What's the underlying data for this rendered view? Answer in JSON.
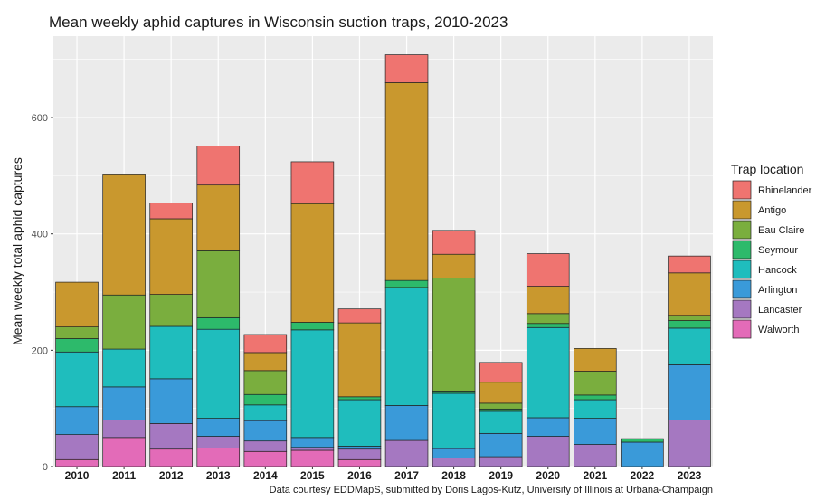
{
  "chart_data": {
    "type": "bar",
    "stacked": true,
    "title": "Mean weekly aphid captures in Wisconsin suction traps, 2010-2023",
    "xlabel": "",
    "ylabel": "Mean weekly total aphid captures",
    "ylim": [
      0,
      740
    ],
    "yticks": [
      0,
      200,
      400,
      600
    ],
    "caption": "Data courtesy EDDMapS, submitted by Doris Lagos-Kutz, University of Illinois at Urbana-Champaign",
    "legend_title": "Trap location",
    "legend_position": "right",
    "grid": true,
    "categories": [
      "2010",
      "2011",
      "2012",
      "2013",
      "2014",
      "2015",
      "2016",
      "2017",
      "2018",
      "2019",
      "2020",
      "2021",
      "2022",
      "2023"
    ],
    "series": [
      {
        "name": "Walworth",
        "color": "#E36BB8",
        "values": [
          12,
          50,
          30,
          32,
          26,
          28,
          12,
          0,
          0,
          0,
          0,
          0,
          0,
          0
        ]
      },
      {
        "name": "Lancaster",
        "color": "#A578C1",
        "values": [
          43,
          30,
          44,
          20,
          18,
          5,
          18,
          45,
          15,
          17,
          52,
          38,
          0,
          80
        ]
      },
      {
        "name": "Arlington",
        "color": "#3A9AD9",
        "values": [
          48,
          57,
          77,
          31,
          35,
          17,
          5,
          60,
          16,
          40,
          32,
          45,
          42,
          95
        ]
      },
      {
        "name": "Hancock",
        "color": "#1FBDBD",
        "values": [
          94,
          65,
          90,
          153,
          27,
          185,
          80,
          203,
          95,
          38,
          155,
          32,
          0,
          63
        ]
      },
      {
        "name": "Seymour",
        "color": "#2DBA6B",
        "values": [
          23,
          0,
          0,
          20,
          18,
          13,
          5,
          12,
          4,
          4,
          7,
          8,
          6,
          13
        ]
      },
      {
        "name": "Eau Claire",
        "color": "#7AAE3E",
        "values": [
          20,
          93,
          55,
          115,
          41,
          0,
          0,
          0,
          194,
          10,
          17,
          41,
          0,
          9
        ]
      },
      {
        "name": "Antigo",
        "color": "#C9982E",
        "values": [
          77,
          208,
          130,
          113,
          31,
          204,
          127,
          340,
          41,
          36,
          47,
          39,
          0,
          73
        ]
      },
      {
        "name": "Rhinelander",
        "color": "#EF7470",
        "values": [
          0,
          0,
          27,
          67,
          31,
          72,
          24,
          48,
          41,
          34,
          56,
          0,
          0,
          29
        ]
      }
    ]
  }
}
